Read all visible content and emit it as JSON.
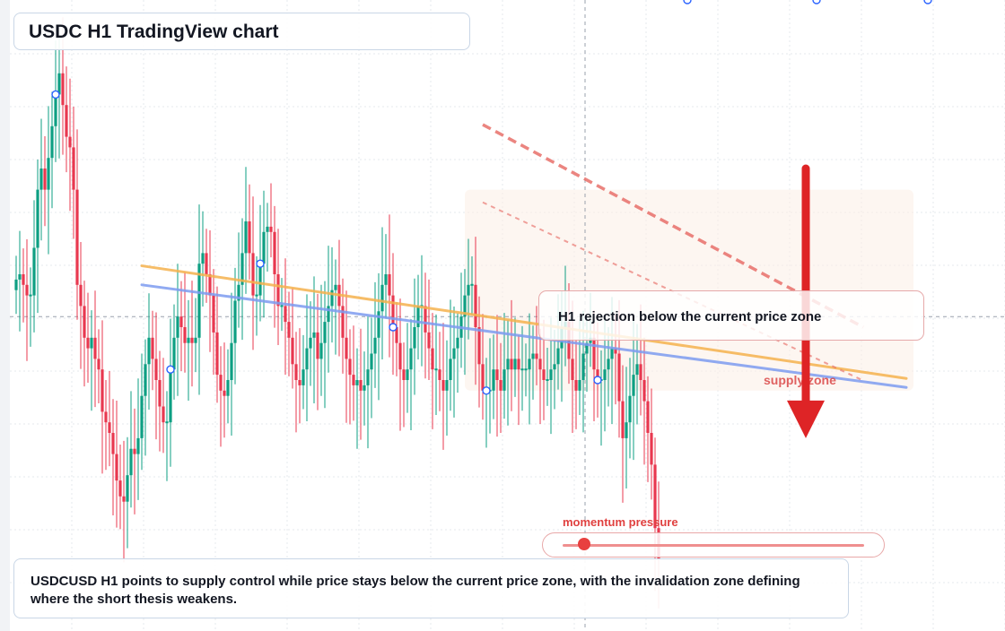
{
  "title": "USDC H1 TradingView chart",
  "callout_text": "H1 rejection below the current price zone",
  "zone_label": "supply zone",
  "momentum": {
    "label": "momentum pressure",
    "level": 0.07
  },
  "summary": "USDCUSD H1 points to supply control while price stays below the current price zone, with the invalidation zone defining where the short thesis weakens.",
  "colors": {
    "bull": "#0e9f83",
    "bear": "#e8384f",
    "ma_fast": "#f5b24e",
    "ma_slow": "#7d9cf0",
    "trendline": "#e8706a",
    "arrow": "#de2426",
    "zone": "#fbeee6"
  },
  "chart_data": {
    "type": "candlestick",
    "timeframe": "H1",
    "symbol": "USDCUSD",
    "title": "USDC H1 TradingView chart",
    "grid": true,
    "ylim": [
      0,
      1000
    ],
    "current_price": 520,
    "crosshair_x": 107,
    "closes": [
      590,
      600,
      580,
      560,
      560,
      650,
      760,
      800,
      760,
      820,
      880,
      940,
      980,
      920,
      860,
      840,
      760,
      580,
      540,
      480,
      460,
      480,
      440,
      420,
      340,
      320,
      300,
      260,
      210,
      180,
      170,
      220,
      270,
      260,
      290,
      370,
      430,
      480,
      440,
      400,
      350,
      320,
      320,
      420,
      480,
      520,
      500,
      470,
      480,
      470,
      480,
      620,
      640,
      600,
      560,
      490,
      410,
      380,
      370,
      400,
      470,
      550,
      580,
      640,
      700,
      640,
      560,
      560,
      620,
      680,
      690,
      680,
      600,
      540,
      540,
      510,
      480,
      430,
      400,
      390,
      420,
      460,
      480,
      490,
      440,
      470,
      510,
      540,
      570,
      580,
      540,
      480,
      440,
      410,
      390,
      400,
      380,
      390,
      420,
      450,
      480,
      530,
      580,
      600,
      560,
      500,
      470,
      420,
      400,
      420,
      460,
      500,
      540,
      540,
      490,
      460,
      420,
      420,
      400,
      380,
      400,
      440,
      460,
      480,
      520,
      560,
      580,
      580,
      500,
      430,
      380,
      380,
      380,
      420,
      400,
      380,
      420,
      440,
      420,
      440,
      420,
      420,
      420,
      440,
      450,
      440,
      420,
      400,
      400,
      420,
      430,
      460,
      500,
      510,
      440,
      400,
      380,
      400,
      450,
      470,
      480,
      420,
      400,
      400,
      420,
      440,
      460,
      450,
      360,
      290,
      320,
      370,
      410,
      430,
      400,
      360,
      300,
      240,
      120,
      60
    ],
    "signal_markers": [
      11,
      43,
      68,
      105,
      131,
      162,
      187,
      223,
      254
    ],
    "ma_fast": {
      "name": "",
      "x": [
        35,
        248
      ],
      "y": [
        616,
        403
      ]
    },
    "ma_slow": {
      "name": "",
      "x": [
        35,
        248
      ],
      "y": [
        580,
        386
      ]
    },
    "trendlines": [
      {
        "style": "dashed",
        "x": [
          130,
          236
        ],
        "y": [
          883,
          500
        ]
      },
      {
        "style": "dotted",
        "x": [
          130,
          236
        ],
        "y": [
          736,
          399
        ]
      }
    ],
    "supply_zone": {
      "x": [
        125,
        250
      ],
      "y": [
        380,
        760
      ]
    },
    "arrow": {
      "x": 220,
      "y_from": 800,
      "y_to": 290
    }
  }
}
